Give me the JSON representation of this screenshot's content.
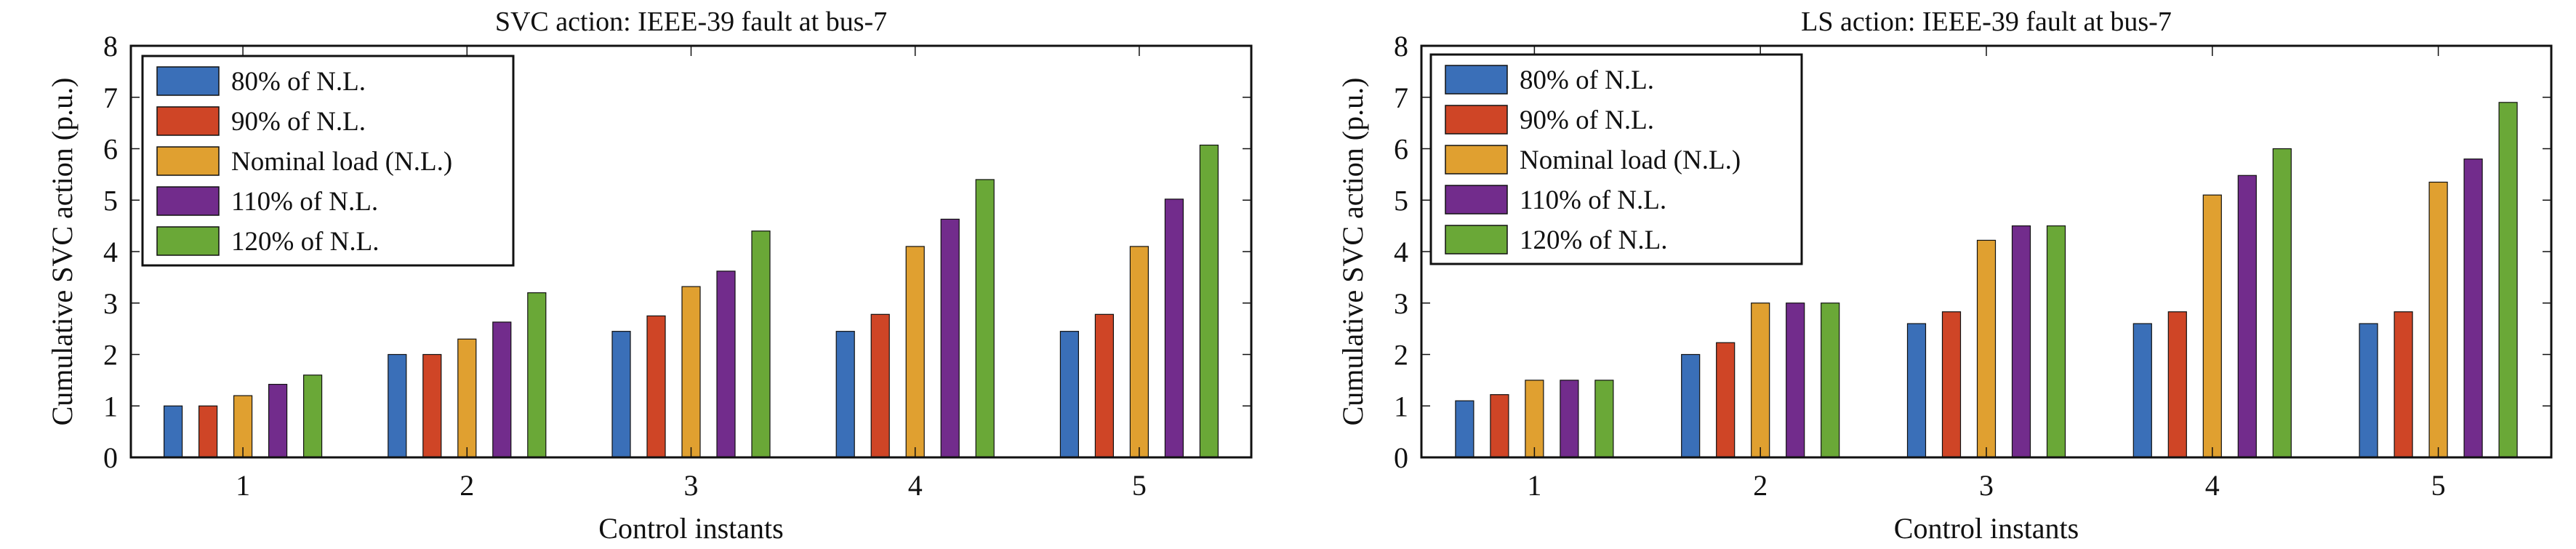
{
  "chart_data": [
    {
      "type": "bar",
      "title": "SVC action: IEEE-39 fault at bus-7",
      "xlabel": "Control instants",
      "ylabel": "Cumulative SVC action (p.u.)",
      "ylim": [
        0,
        8
      ],
      "yticks": [
        "0",
        "1",
        "2",
        "3",
        "4",
        "5",
        "6",
        "7",
        "8"
      ],
      "categories": [
        "1",
        "2",
        "3",
        "4",
        "5"
      ],
      "legend_position": "top-left",
      "series": [
        {
          "name": "80% of N.L.",
          "color": "#3a6fb8",
          "values": [
            1.0,
            2.0,
            2.45,
            2.45,
            2.45
          ]
        },
        {
          "name": "90% of N.L.",
          "color": "#cf4526",
          "values": [
            1.0,
            2.0,
            2.75,
            2.78,
            2.78
          ]
        },
        {
          "name": "Nominal load (N.L.)",
          "color": "#e0a030",
          "values": [
            1.2,
            2.3,
            3.32,
            4.1,
            4.1
          ]
        },
        {
          "name": "110% of N.L.",
          "color": "#722c8c",
          "values": [
            1.42,
            2.63,
            3.62,
            4.63,
            5.02
          ]
        },
        {
          "name": "120% of N.L.",
          "color": "#6aa837",
          "values": [
            1.6,
            3.2,
            4.4,
            5.4,
            6.07
          ]
        }
      ]
    },
    {
      "type": "bar",
      "title": "LS action: IEEE-39 fault at bus-7",
      "xlabel": "Control instants",
      "ylabel": "Cumulative SVC action (p.u.)",
      "ylim": [
        0,
        8
      ],
      "yticks": [
        "0",
        "1",
        "2",
        "3",
        "4",
        "5",
        "6",
        "7",
        "8"
      ],
      "categories": [
        "1",
        "2",
        "3",
        "4",
        "5"
      ],
      "legend_position": "top-left",
      "series": [
        {
          "name": "80% of N.L.",
          "color": "#3a6fb8",
          "values": [
            1.1,
            2.0,
            2.6,
            2.6,
            2.6
          ]
        },
        {
          "name": "90% of N.L.",
          "color": "#cf4526",
          "values": [
            1.22,
            2.23,
            2.83,
            2.83,
            2.83
          ]
        },
        {
          "name": "Nominal load (N.L.)",
          "color": "#e0a030",
          "values": [
            1.5,
            3.0,
            4.22,
            5.1,
            5.35
          ]
        },
        {
          "name": "110% of N.L.",
          "color": "#722c8c",
          "values": [
            1.5,
            3.0,
            4.5,
            5.48,
            5.8
          ]
        },
        {
          "name": "120% of N.L.",
          "color": "#6aa837",
          "values": [
            1.5,
            3.0,
            4.5,
            6.0,
            6.9
          ]
        }
      ]
    }
  ]
}
